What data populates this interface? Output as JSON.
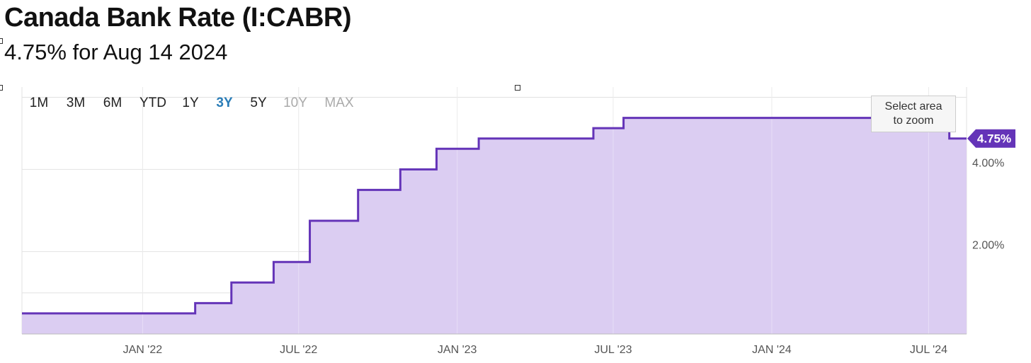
{
  "header": {
    "title": "Canada Bank Rate (I:CABR)",
    "subtitle": "4.75% for Aug 14 2024"
  },
  "range_buttons": [
    {
      "label": "1M",
      "state": "normal"
    },
    {
      "label": "3M",
      "state": "normal"
    },
    {
      "label": "6M",
      "state": "normal"
    },
    {
      "label": "YTD",
      "state": "normal"
    },
    {
      "label": "1Y",
      "state": "normal"
    },
    {
      "label": "3Y",
      "state": "active"
    },
    {
      "label": "5Y",
      "state": "normal"
    },
    {
      "label": "10Y",
      "state": "disabled"
    },
    {
      "label": "MAX",
      "state": "disabled"
    }
  ],
  "zoom_hint": {
    "line1": "Select area",
    "line2": "to zoom"
  },
  "colors": {
    "line": "#6434b8",
    "fill": "#dbcdf2",
    "grid": "#e2e2e2",
    "active": "#2a7db8",
    "badge": "#6434b8"
  },
  "chart_data": {
    "type": "area",
    "step": true,
    "series": [
      {
        "points": [
          [
            "2021-08-14",
            0.5
          ],
          [
            "2022-03-03",
            0.75
          ],
          [
            "2022-04-14",
            1.25
          ],
          [
            "2022-06-02",
            1.75
          ],
          [
            "2022-07-14",
            2.75
          ],
          [
            "2022-09-08",
            3.5
          ],
          [
            "2022-10-27",
            4.0
          ],
          [
            "2022-12-08",
            4.5
          ],
          [
            "2023-01-26",
            4.75
          ],
          [
            "2023-06-08",
            5.0
          ],
          [
            "2023-07-13",
            5.25
          ],
          [
            "2024-06-06",
            5.0
          ],
          [
            "2024-07-25",
            4.75
          ],
          [
            "2024-08-14",
            4.75
          ]
        ]
      }
    ],
    "last_value_label": "4.75%",
    "x_ticks": [
      {
        "date": "2022-01-01",
        "label": "JAN '22"
      },
      {
        "date": "2022-07-01",
        "label": "JUL '22"
      },
      {
        "date": "2023-01-01",
        "label": "JAN '23"
      },
      {
        "date": "2023-07-01",
        "label": "JUL '23"
      },
      {
        "date": "2024-01-01",
        "label": "JAN '24"
      },
      {
        "date": "2024-07-01",
        "label": "JUL '24"
      }
    ],
    "y_ticks": [
      {
        "value": 2.0,
        "label": "2.00%"
      },
      {
        "value": 4.0,
        "label": "4.00%"
      }
    ],
    "xlim": [
      "2021-08-14",
      "2024-08-14"
    ],
    "ylim": [
      0.0,
      6.0
    ],
    "grid": true,
    "y_axis_position": "right"
  }
}
